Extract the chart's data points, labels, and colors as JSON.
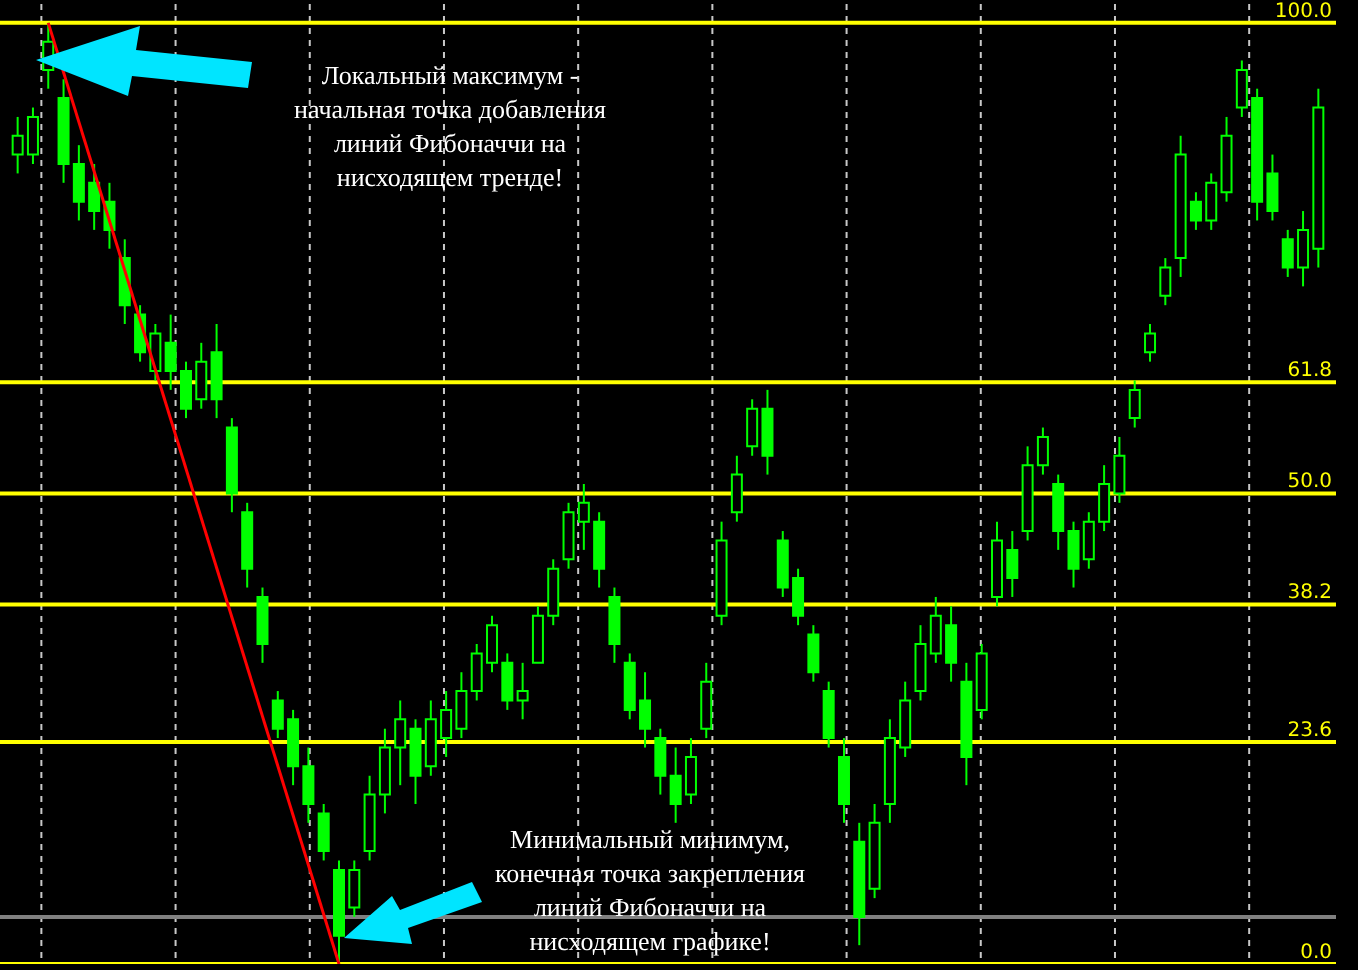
{
  "chart_data": {
    "type": "candlestick",
    "categories": [
      null,
      null,
      null,
      null,
      null,
      null,
      null,
      null,
      null,
      null,
      null,
      null,
      null,
      null,
      null,
      null,
      null,
      null,
      null,
      null,
      null,
      null,
      null,
      null,
      null,
      null,
      null,
      null,
      null,
      null,
      null,
      null,
      null,
      null,
      null,
      null,
      null,
      null,
      null,
      null,
      null,
      null,
      null,
      null,
      null,
      null,
      null,
      null,
      null,
      null,
      null,
      null,
      null,
      null,
      null,
      null,
      null,
      null,
      null,
      null,
      null,
      null,
      null,
      null,
      null,
      null,
      null,
      null,
      null,
      null,
      null,
      null,
      null,
      null,
      null,
      null,
      null,
      null,
      null,
      null,
      null,
      null,
      null,
      null,
      null,
      null
    ],
    "ohlc": [
      [
        86,
        90,
        84,
        88
      ],
      [
        86,
        91,
        85,
        90
      ],
      [
        95,
        100,
        93,
        98
      ],
      [
        92,
        94,
        83,
        85
      ],
      [
        85,
        87,
        79,
        81
      ],
      [
        83,
        85,
        78,
        80
      ],
      [
        81,
        83,
        76,
        78
      ],
      [
        75,
        77,
        68,
        70
      ],
      [
        69,
        70,
        64,
        65
      ],
      [
        63,
        68,
        62,
        67
      ],
      [
        66,
        69,
        61,
        63
      ],
      [
        63,
        64,
        58,
        59
      ],
      [
        60,
        66,
        59,
        64
      ],
      [
        65,
        68,
        58,
        60
      ],
      [
        57,
        58,
        48,
        50
      ],
      [
        48,
        49,
        40,
        42
      ],
      [
        39,
        40,
        32,
        34
      ],
      [
        28,
        29,
        24,
        25
      ],
      [
        26,
        27,
        19,
        21
      ],
      [
        21,
        23,
        15,
        17
      ],
      [
        16,
        17,
        11,
        12
      ],
      [
        10,
        11,
        0,
        3
      ],
      [
        6,
        11,
        5,
        10
      ],
      [
        12,
        20,
        11,
        18
      ],
      [
        18,
        25,
        16,
        23
      ],
      [
        23,
        28,
        19,
        26
      ],
      [
        25,
        26,
        17,
        20
      ],
      [
        21,
        28,
        20,
        26
      ],
      [
        24,
        29,
        22,
        27
      ],
      [
        25,
        31,
        24,
        29
      ],
      [
        29,
        34,
        28,
        33
      ],
      [
        32,
        37,
        31,
        36
      ],
      [
        32,
        33,
        27,
        28
      ],
      [
        28,
        32,
        26,
        29
      ],
      [
        32,
        38,
        32,
        37
      ],
      [
        37,
        43,
        36,
        42
      ],
      [
        43,
        49,
        42,
        48
      ],
      [
        47,
        51,
        44,
        49
      ],
      [
        47,
        48,
        40,
        42
      ],
      [
        39,
        40,
        32,
        34
      ],
      [
        32,
        33,
        26,
        27
      ],
      [
        28,
        31,
        23,
        25
      ],
      [
        24,
        25,
        18,
        20
      ],
      [
        20,
        23,
        15,
        17
      ],
      [
        18,
        24,
        17,
        22
      ],
      [
        25,
        32,
        24,
        30
      ],
      [
        37,
        47,
        36,
        45
      ],
      [
        48,
        54,
        47,
        52
      ],
      [
        55,
        60,
        54,
        59
      ],
      [
        59,
        61,
        52,
        54
      ],
      [
        45,
        46,
        39,
        40
      ],
      [
        41,
        42,
        36,
        37
      ],
      [
        35,
        36,
        30,
        31
      ],
      [
        29,
        30,
        23,
        24
      ],
      [
        22,
        24,
        15,
        17
      ],
      [
        13,
        15,
        2,
        5
      ],
      [
        8,
        17,
        7,
        15
      ],
      [
        17,
        26,
        15,
        24
      ],
      [
        23,
        30,
        22,
        28
      ],
      [
        29,
        36,
        28,
        34
      ],
      [
        33,
        39,
        32,
        37
      ],
      [
        36,
        38,
        30,
        32
      ],
      [
        30,
        32,
        19,
        22
      ],
      [
        27,
        34,
        26,
        33
      ],
      [
        39,
        47,
        38,
        45
      ],
      [
        44,
        46,
        39,
        41
      ],
      [
        46,
        55,
        45,
        53
      ],
      [
        53,
        57,
        52,
        56
      ],
      [
        51,
        52,
        44,
        46
      ],
      [
        46,
        47,
        40,
        42
      ],
      [
        43,
        48,
        42,
        47
      ],
      [
        47,
        53,
        46,
        51
      ],
      [
        50,
        56,
        49,
        54
      ],
      [
        58,
        62,
        57,
        61
      ],
      [
        65,
        68,
        64,
        67
      ],
      [
        71,
        75,
        70,
        74
      ],
      [
        75,
        88,
        73,
        86
      ],
      [
        81,
        82,
        78,
        79
      ],
      [
        79,
        84,
        78,
        83
      ],
      [
        82,
        90,
        81,
        88
      ],
      [
        91,
        96,
        90,
        95
      ],
      [
        92,
        93,
        79,
        81
      ],
      [
        84,
        86,
        79,
        80
      ],
      [
        77,
        78,
        73,
        74
      ],
      [
        74,
        80,
        72,
        78
      ],
      [
        76,
        93,
        74,
        91
      ]
    ],
    "color": "#00ff00",
    "series": [
      {
        "type": "line",
        "color": "#ff0000",
        "values": [
          null,
          null,
          100,
          null,
          null,
          null,
          null,
          null,
          null,
          null,
          null,
          null,
          null,
          null,
          null,
          null,
          null,
          null,
          null,
          null,
          null,
          0,
          null,
          null,
          null,
          null,
          null,
          null,
          null,
          null,
          null,
          null,
          null,
          null,
          null,
          null,
          null,
          null,
          null,
          null,
          null,
          null,
          null,
          null,
          null,
          null,
          null,
          null,
          null,
          null,
          null,
          null,
          null,
          null,
          null,
          null,
          null,
          null,
          null,
          null,
          null,
          null,
          null,
          null,
          null,
          null,
          null,
          null,
          null,
          null,
          null,
          null,
          null,
          null,
          null,
          null,
          null,
          null,
          null,
          null,
          null,
          null,
          null,
          null,
          null,
          null
        ]
      }
    ],
    "ylim": [
      0,
      102
    ],
    "ref_lines": [
      {
        "axis": "y",
        "value": 100,
        "label": "100.0",
        "color": "#ffff00"
      },
      {
        "axis": "y",
        "value": 61.8,
        "label": "61.8",
        "color": "#ffff00"
      },
      {
        "axis": "y",
        "value": 50,
        "label": "50.0",
        "color": "#ffff00"
      },
      {
        "axis": "y",
        "value": 38.2,
        "label": "38.2",
        "color": "#ffff00"
      },
      {
        "axis": "y",
        "value": 23.6,
        "label": "23.6",
        "color": "#ffff00"
      },
      {
        "axis": "y",
        "value": 0,
        "label": "0.0",
        "color": "#ffff00"
      },
      {
        "axis": "y",
        "value": 5,
        "color": "#808080"
      }
    ],
    "annotations": [
      "Локальный максимум -\nначальная точка добавления\nлиний Фибоначчи на\nнисходящем тренде!",
      "Минимальный минимум,\nконечная точка закрепления\nлиний Фибоначчи на\nнисходящем графике!"
    ],
    "grid": "x"
  }
}
